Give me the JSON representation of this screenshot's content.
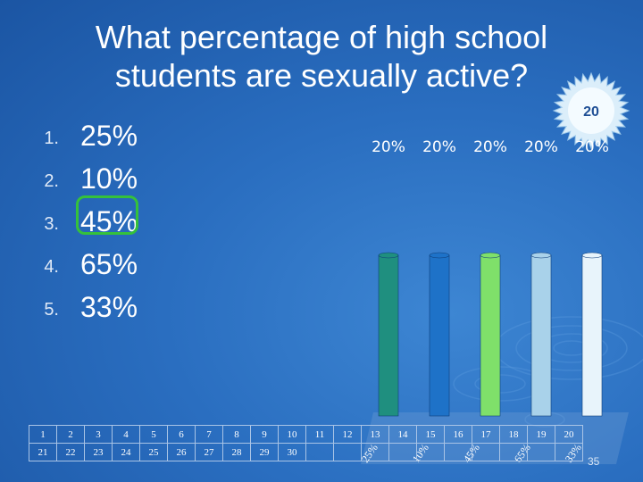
{
  "slide": {
    "title": "What percentage of high school students are sexually active?",
    "slide_number": "35"
  },
  "options": [
    {
      "number": "1.",
      "label": "25%"
    },
    {
      "number": "2.",
      "label": "10%"
    },
    {
      "number": "3.",
      "label": "45%",
      "correct": true
    },
    {
      "number": "4.",
      "label": "65%"
    },
    {
      "number": "5.",
      "label": "33%"
    }
  ],
  "timer": {
    "value": "20"
  },
  "response_grid": {
    "row1": [
      "1",
      "2",
      "3",
      "4",
      "5",
      "6",
      "7",
      "8",
      "9",
      "10",
      "11",
      "12",
      "13",
      "14",
      "15",
      "16",
      "17",
      "18",
      "19",
      "20"
    ],
    "row2": [
      "21",
      "22",
      "23",
      "24",
      "25",
      "26",
      "27",
      "28",
      "29",
      "30",
      "",
      "",
      "",
      "",
      "",
      "",
      "",
      "",
      "",
      ""
    ]
  },
  "chart_data": {
    "type": "bar",
    "categories": [
      "25%",
      "10%",
      "45%",
      "65%",
      "33%"
    ],
    "values": [
      20,
      20,
      20,
      20,
      20
    ],
    "data_labels": [
      "20%",
      "20%",
      "20%",
      "20%",
      "20%"
    ],
    "ylim": [
      0,
      100
    ],
    "series_colors": [
      "#1f8f7f",
      "#1e72c8",
      "#7fe06a",
      "#a9d2ea",
      "#e8f4fb"
    ],
    "correct_index": 2
  },
  "colors": {
    "correct": "#35c13b",
    "background": "#2a6ec0"
  }
}
